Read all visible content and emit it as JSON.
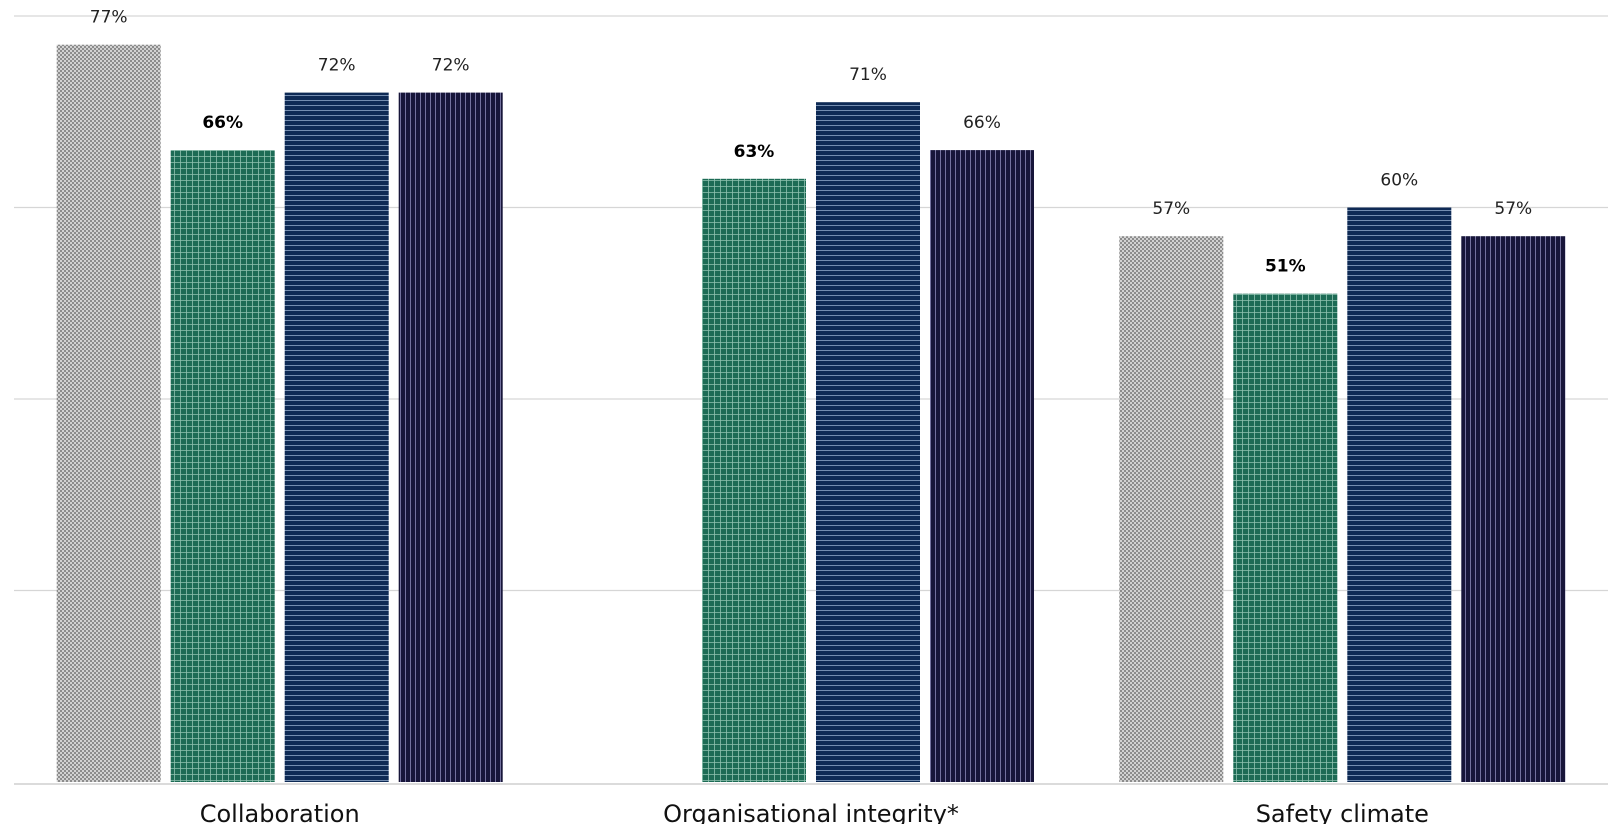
{
  "chart_data": {
    "type": "bar",
    "categories": [
      "Collaboration",
      "Organisational integrity*",
      "Safety climate"
    ],
    "series": [
      {
        "values": [
          77,
          null,
          57
        ],
        "labels": [
          "77%",
          "",
          "57%"
        ],
        "color": "#9a9a9a",
        "pattern": "checker",
        "bold_labels": false
      },
      {
        "values": [
          66,
          63,
          51
        ],
        "labels": [
          "66%",
          "63%",
          "51%"
        ],
        "color": "#1d6b55",
        "pattern": "grid",
        "bold_labels": true
      },
      {
        "values": [
          72,
          71,
          60
        ],
        "labels": [
          "72%",
          "71%",
          "60%"
        ],
        "color": "#0e2a55",
        "pattern": "horizontal-lines",
        "bold_labels": false
      },
      {
        "values": [
          72,
          66,
          57
        ],
        "labels": [
          "72%",
          "66%",
          "57%"
        ],
        "color": "#17153a",
        "pattern": "vertical-lines",
        "bold_labels": false
      }
    ],
    "ylim": [
      0,
      80
    ],
    "grid": true,
    "legend": "none",
    "title": "",
    "xlabel": "",
    "ylabel": ""
  }
}
